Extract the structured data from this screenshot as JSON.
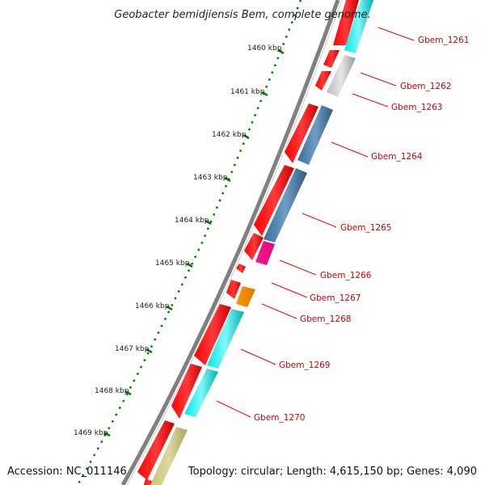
{
  "title": "Geobacter bemidjiensis Bem, complete genome.",
  "accession_label": "Accession: NC_011146",
  "topology_label": "Topology: circular; Length: 4,615,150 bp; Genes: 4,090",
  "ruler_ticks": [
    "1460 kbp",
    "1461 kbp",
    "1462 kbp",
    "1463 kbp",
    "1464 kbp",
    "1465 kbp",
    "1466 kbp",
    "1467 kbp",
    "1468 kbp",
    "1469 kbp"
  ],
  "genes": [
    {
      "name": "Gbem_1261",
      "feature_color": "#00cccc"
    },
    {
      "name": "Gbem_1262",
      "feature_color": "#c0c0c0"
    },
    {
      "name": "Gbem_1263",
      "feature_color": "#ff0000"
    },
    {
      "name": "Gbem_1264",
      "feature_color": "#4a7aa6"
    },
    {
      "name": "Gbem_1265",
      "feature_color": "#4a7aa6"
    },
    {
      "name": "Gbem_1266",
      "feature_color": "#ff1493"
    },
    {
      "name": "Gbem_1267",
      "feature_color": "#ff0000"
    },
    {
      "name": "Gbem_1268",
      "feature_color": "#ff8c00"
    },
    {
      "name": "Gbem_1269",
      "feature_color": "#00e5e5"
    },
    {
      "name": "Gbem_1270",
      "feature_color": "#00e5e5"
    }
  ],
  "colors": {
    "cds_red": "#ff0000",
    "backbone": "#7f7f7f",
    "gc_dots": "#008000",
    "label_red": "#d40000",
    "olive": "#bdb76b"
  }
}
